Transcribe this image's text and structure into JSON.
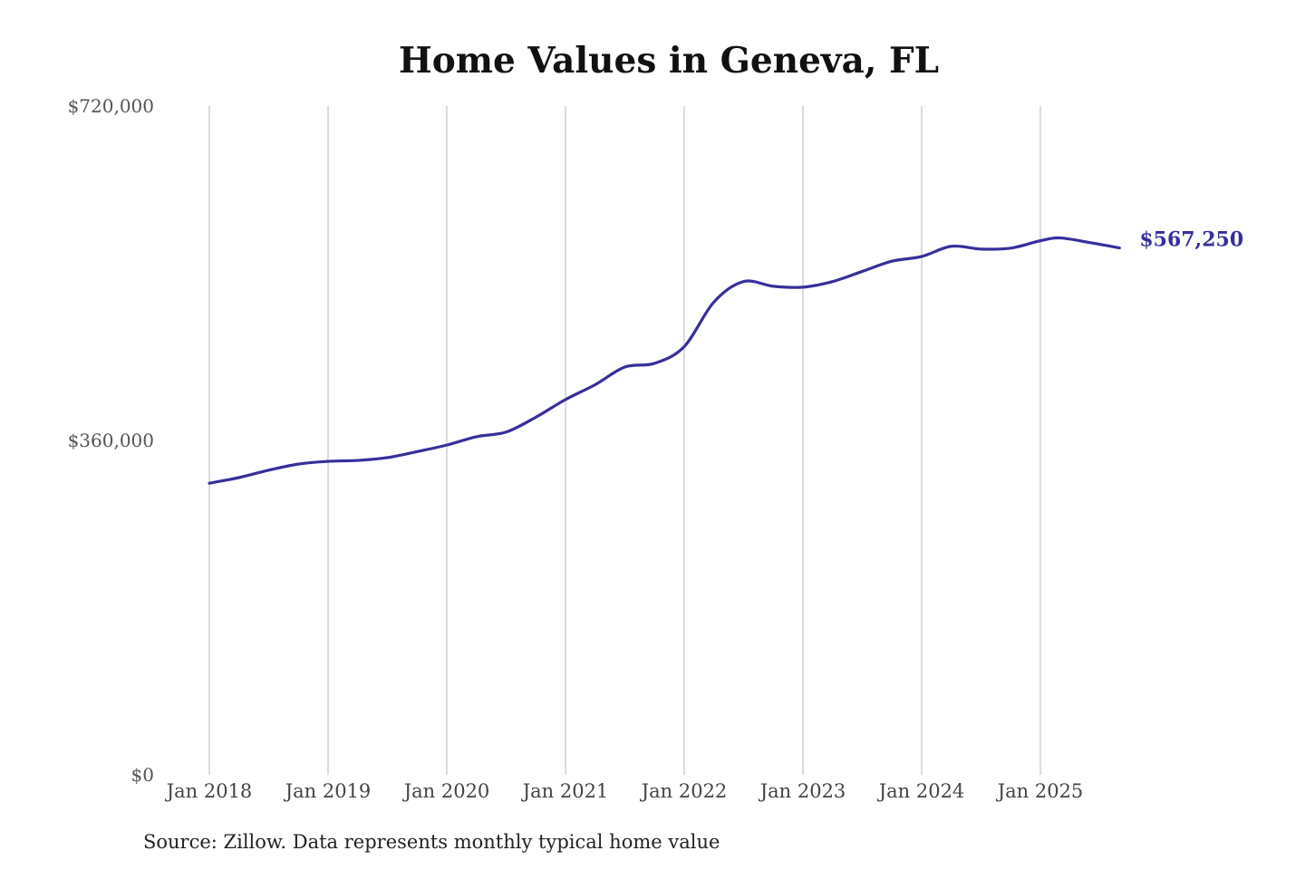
{
  "chart_data": {
    "type": "line",
    "title": "Home Values in Geneva, FL",
    "xlabel": "",
    "ylabel": "",
    "ylim": [
      0,
      720000
    ],
    "y_ticks": [
      "$0",
      "$360,000",
      "$720,000"
    ],
    "y_tick_values": [
      0,
      360000,
      720000
    ],
    "x_ticks": [
      "Jan 2018",
      "Jan 2019",
      "Jan 2020",
      "Jan 2021",
      "Jan 2022",
      "Jan 2023",
      "Jan 2024",
      "Jan 2025"
    ],
    "grid": "vertical",
    "line_color": "#372f9b",
    "end_label": "$567,250",
    "series": [
      {
        "x": [
          "2018-01",
          "2018-04",
          "2018-07",
          "2018-10",
          "2019-01",
          "2019-04",
          "2019-07",
          "2019-10",
          "2020-01",
          "2020-04",
          "2020-07",
          "2020-10",
          "2021-01",
          "2021-04",
          "2021-07",
          "2021-10",
          "2022-01",
          "2022-04",
          "2022-07",
          "2022-10",
          "2023-01",
          "2023-04",
          "2023-07",
          "2023-10",
          "2024-01",
          "2024-04",
          "2024-07",
          "2024-10",
          "2025-01",
          "2025-03",
          "2025-06",
          "2025-09"
        ],
        "values": [
          314000,
          320000,
          328000,
          334500,
          337500,
          338500,
          341500,
          348000,
          355000,
          364000,
          369000,
          385000,
          404000,
          420000,
          439000,
          443000,
          461000,
          509000,
          531000,
          526000,
          525000,
          531000,
          542000,
          553000,
          558000,
          569000,
          566000,
          567000,
          575000,
          578000,
          573000,
          567250
        ]
      }
    ]
  },
  "source": "Source: Zillow. Data represents monthly typical home value"
}
